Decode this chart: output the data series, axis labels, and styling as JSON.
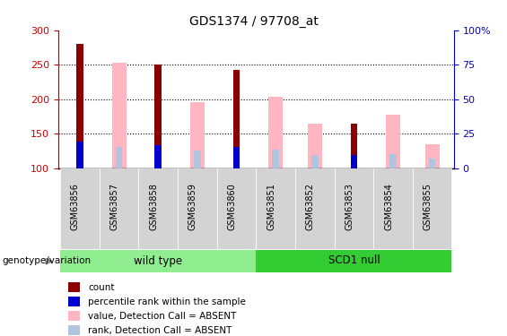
{
  "title": "GDS1374 / 97708_at",
  "samples": [
    "GSM63856",
    "GSM63857",
    "GSM63858",
    "GSM63859",
    "GSM63860",
    "GSM63851",
    "GSM63852",
    "GSM63853",
    "GSM63854",
    "GSM63855"
  ],
  "groups": [
    "wild type",
    "wild type",
    "wild type",
    "wild type",
    "wild type",
    "SCD1 null",
    "SCD1 null",
    "SCD1 null",
    "SCD1 null",
    "SCD1 null"
  ],
  "count_values": [
    280,
    0,
    250,
    0,
    242,
    0,
    0,
    164,
    0,
    0
  ],
  "percentile_rank": [
    138,
    0,
    133,
    0,
    131,
    0,
    0,
    119,
    0,
    0
  ],
  "value_absent": [
    0,
    253,
    0,
    196,
    0,
    204,
    165,
    0,
    178,
    135
  ],
  "rank_absent": [
    0,
    131,
    0,
    125,
    0,
    127,
    119,
    0,
    120,
    114
  ],
  "ylim": [
    100,
    300
  ],
  "yticks": [
    100,
    150,
    200,
    250,
    300
  ],
  "right_yticks": [
    0,
    25,
    50,
    75,
    100
  ],
  "color_count": "#8B0000",
  "color_percentile": "#0000CC",
  "color_value_absent": "#FFB6C1",
  "color_rank_absent": "#B0C4DE",
  "group_wt_color": "#90EE90",
  "group_scd1_color": "#33CC33",
  "cell_bg": "#D3D3D3",
  "genotype_label": "genotype/variation",
  "legend_items": [
    "count",
    "percentile rank within the sample",
    "value, Detection Call = ABSENT",
    "rank, Detection Call = ABSENT"
  ]
}
